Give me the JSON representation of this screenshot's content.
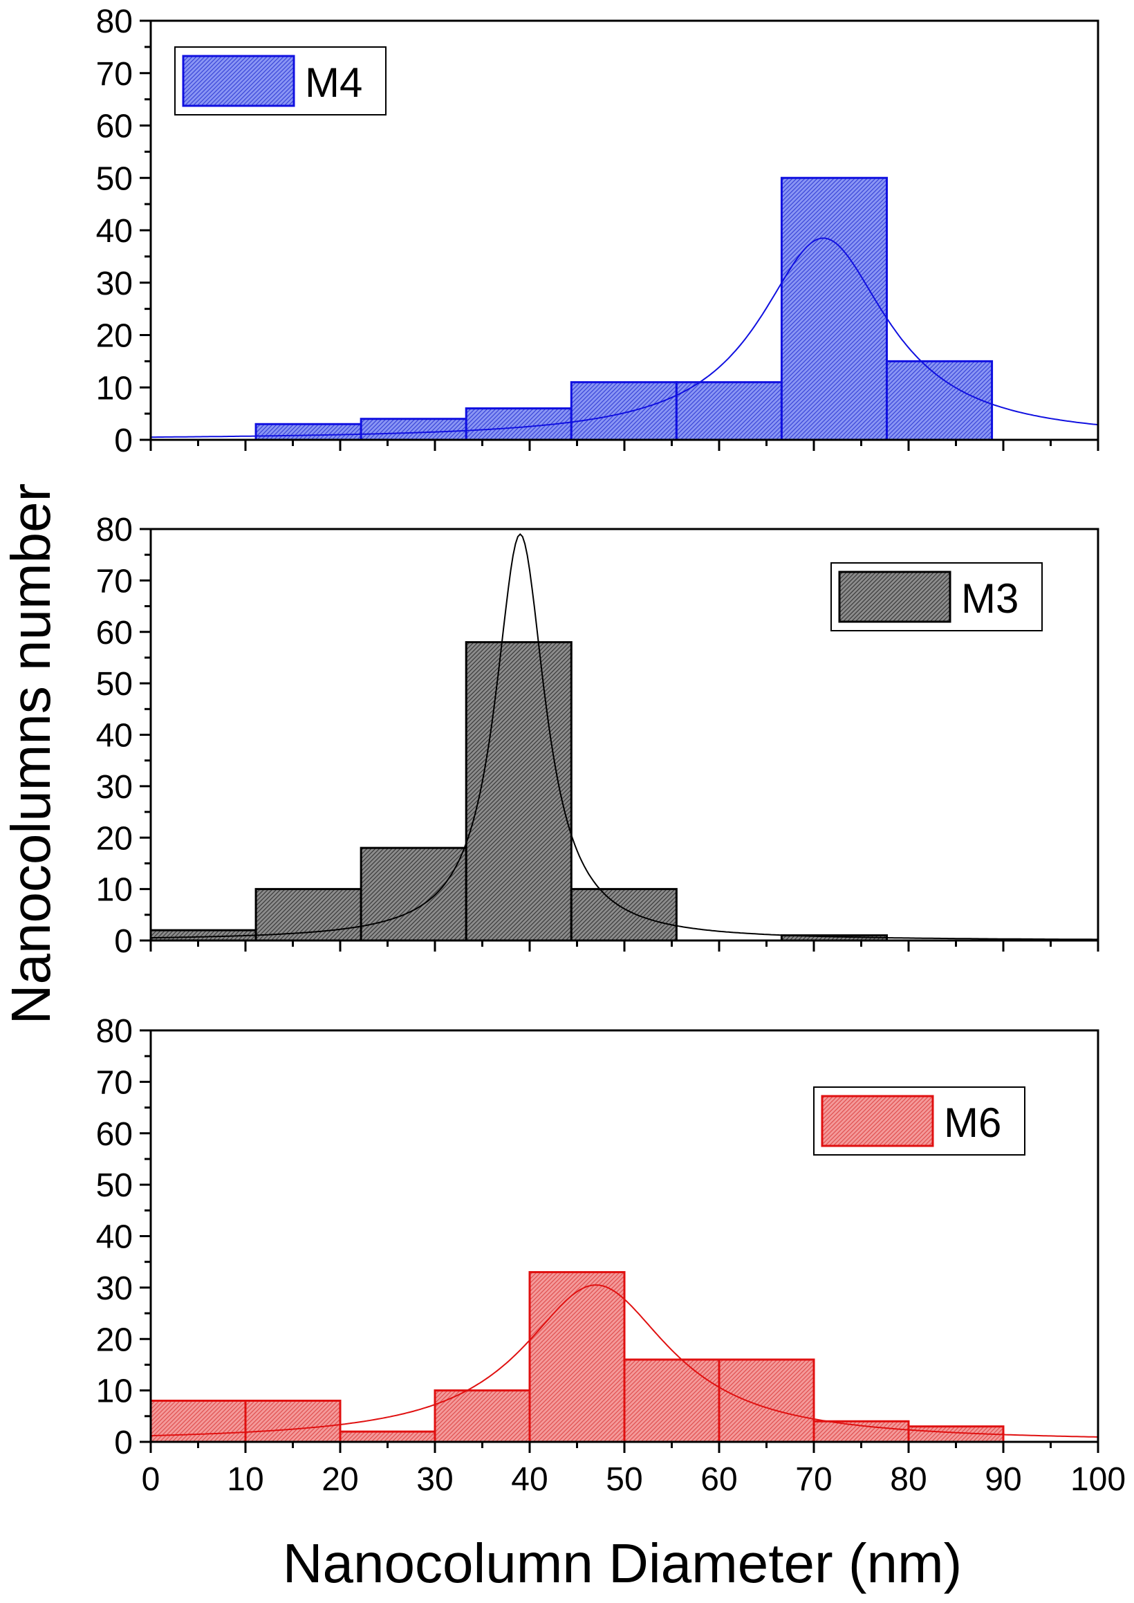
{
  "figure": {
    "ylabel": "Nanocolumns number",
    "xlabel": "Nanocolumn Diameter (nm)"
  },
  "colors": {
    "M4": {
      "fill": "#6b7bf0",
      "stroke": "#1010e0",
      "curve": "#1010e0"
    },
    "M3": {
      "fill": "#7a7a7a",
      "stroke": "#000000",
      "curve": "#000000"
    },
    "M6": {
      "fill": "#f08080",
      "stroke": "#e01010",
      "curve": "#e01010"
    }
  },
  "chart_data": [
    {
      "type": "bar",
      "series_name": "M4",
      "legend": "M4",
      "legend_position": "top-left",
      "xlim": [
        0,
        100
      ],
      "ylim": [
        0,
        80
      ],
      "yticks": [
        "0",
        "10",
        "20",
        "30",
        "40",
        "50",
        "60",
        "70",
        "80"
      ],
      "bins": [
        {
          "x0": 11.1,
          "x1": 22.2,
          "value": 3
        },
        {
          "x0": 22.2,
          "x1": 33.3,
          "value": 4
        },
        {
          "x0": 33.3,
          "x1": 44.4,
          "value": 6
        },
        {
          "x0": 44.4,
          "x1": 55.5,
          "value": 11
        },
        {
          "x0": 55.5,
          "x1": 66.6,
          "value": 11
        },
        {
          "x0": 66.6,
          "x1": 77.7,
          "value": 50
        },
        {
          "x0": 77.7,
          "x1": 88.8,
          "value": 15
        }
      ],
      "fit": {
        "type": "lorentzian",
        "y0": 0,
        "xc": 71,
        "w": 16.5,
        "A": 38.5
      }
    },
    {
      "type": "bar",
      "series_name": "M3",
      "legend": "M3",
      "legend_position": "top-right",
      "xlim": [
        0,
        100
      ],
      "ylim": [
        0,
        80
      ],
      "yticks": [
        "0",
        "10",
        "20",
        "30",
        "40",
        "50",
        "60",
        "70",
        "80"
      ],
      "bins": [
        {
          "x0": 0,
          "x1": 11.1,
          "value": 2
        },
        {
          "x0": 11.1,
          "x1": 22.2,
          "value": 10
        },
        {
          "x0": 22.2,
          "x1": 33.3,
          "value": 18
        },
        {
          "x0": 33.3,
          "x1": 44.4,
          "value": 58
        },
        {
          "x0": 44.4,
          "x1": 55.5,
          "value": 10
        },
        {
          "x0": 66.6,
          "x1": 77.7,
          "value": 1
        }
      ],
      "fit": {
        "type": "lorentzian",
        "y0": 0,
        "xc": 39,
        "w": 6.4,
        "A": 79
      }
    },
    {
      "type": "bar",
      "series_name": "M6",
      "legend": "M6",
      "legend_position": "right",
      "xlim": [
        0,
        100
      ],
      "ylim": [
        0,
        80
      ],
      "yticks": [
        "0",
        "10",
        "20",
        "30",
        "40",
        "50",
        "60",
        "70",
        "80"
      ],
      "xticks": [
        "0",
        "10",
        "20",
        "30",
        "40",
        "50",
        "60",
        "70",
        "80",
        "90",
        "100"
      ],
      "bins": [
        {
          "x0": 0,
          "x1": 10,
          "value": 8
        },
        {
          "x0": 10,
          "x1": 20,
          "value": 8
        },
        {
          "x0": 20,
          "x1": 30,
          "value": 2
        },
        {
          "x0": 30,
          "x1": 40,
          "value": 10
        },
        {
          "x0": 40,
          "x1": 50,
          "value": 33
        },
        {
          "x0": 50,
          "x1": 60,
          "value": 16
        },
        {
          "x0": 60,
          "x1": 70,
          "value": 16
        },
        {
          "x0": 70,
          "x1": 80,
          "value": 4
        },
        {
          "x0": 80,
          "x1": 90,
          "value": 3
        }
      ],
      "fit": {
        "type": "lorentzian",
        "y0": 0,
        "xc": 47,
        "w": 19,
        "A": 30.5
      }
    }
  ]
}
